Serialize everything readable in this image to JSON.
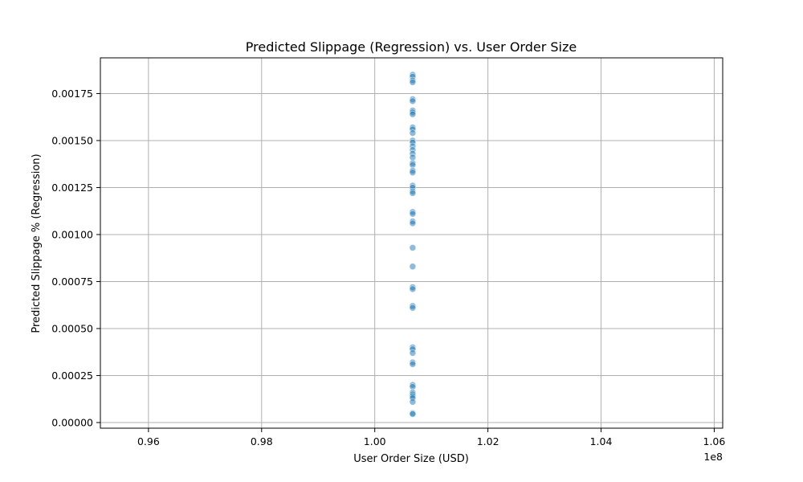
{
  "chart_data": {
    "type": "scatter",
    "title": "Predicted Slippage (Regression) vs. User Order Size",
    "xlabel": "User Order Size (USD)",
    "ylabel": "Predicted Slippage % (Regression)",
    "x_offset_label": "1e8",
    "xlim": [
      0.9515,
      1.0615
    ],
    "ylim": [
      -3e-05,
      0.00194
    ],
    "x_ticks": [
      0.96,
      0.98,
      1.0,
      1.02,
      1.04,
      1.06
    ],
    "x_tick_labels": [
      "0.96",
      "0.98",
      "1.00",
      "1.02",
      "1.04",
      "1.06"
    ],
    "y_ticks": [
      0.0,
      0.00025,
      0.0005,
      0.00075,
      0.001,
      0.00125,
      0.0015,
      0.00175
    ],
    "y_tick_labels": [
      "0.00000",
      "0.00025",
      "0.00050",
      "0.00075",
      "0.00100",
      "0.00125",
      "0.00150",
      "0.00175"
    ],
    "grid": true,
    "point_color": "#1f77b4",
    "point_edge_color": "#ffffff",
    "point_opacity": 0.5,
    "series": [
      {
        "x": [
          1.0067,
          1.0067,
          1.0067,
          1.0067,
          1.0067,
          1.0067,
          1.0067,
          1.0067,
          1.0067,
          1.0067,
          1.0067,
          1.0067,
          1.0067,
          1.0067,
          1.0067,
          1.0067,
          1.0067,
          1.0067,
          1.0067,
          1.0067,
          1.0067,
          1.0067,
          1.0067,
          1.0067,
          1.0067,
          1.0067,
          1.0067,
          1.0067,
          1.0067,
          1.0067,
          1.0067,
          1.0067,
          1.0067,
          1.0067,
          1.0067,
          1.0067,
          1.0067,
          1.0067,
          1.0067,
          1.0067,
          1.0067,
          1.0067,
          1.0067,
          1.0067,
          1.0067,
          1.0067,
          1.0067,
          1.0067,
          1.0067,
          1.0067
        ],
        "y": [
          0.00185,
          0.00184,
          0.00182,
          0.00181,
          0.00172,
          0.00171,
          0.00166,
          0.00165,
          0.00164,
          0.00157,
          0.00156,
          0.00154,
          0.0015,
          0.00149,
          0.00147,
          0.00145,
          0.00143,
          0.00141,
          0.00138,
          0.00137,
          0.00134,
          0.00133,
          0.00126,
          0.00125,
          0.00123,
          0.00122,
          0.00112,
          0.00111,
          0.00107,
          0.00106,
          0.00093,
          0.00083,
          0.00072,
          0.00071,
          0.00062,
          0.00061,
          0.0004,
          0.00039,
          0.00037,
          0.00032,
          0.00031,
          0.0002,
          0.00019,
          0.00016,
          0.00015,
          0.00014,
          0.00013,
          0.00011,
          5e-05,
          4.5e-05
        ]
      }
    ]
  }
}
